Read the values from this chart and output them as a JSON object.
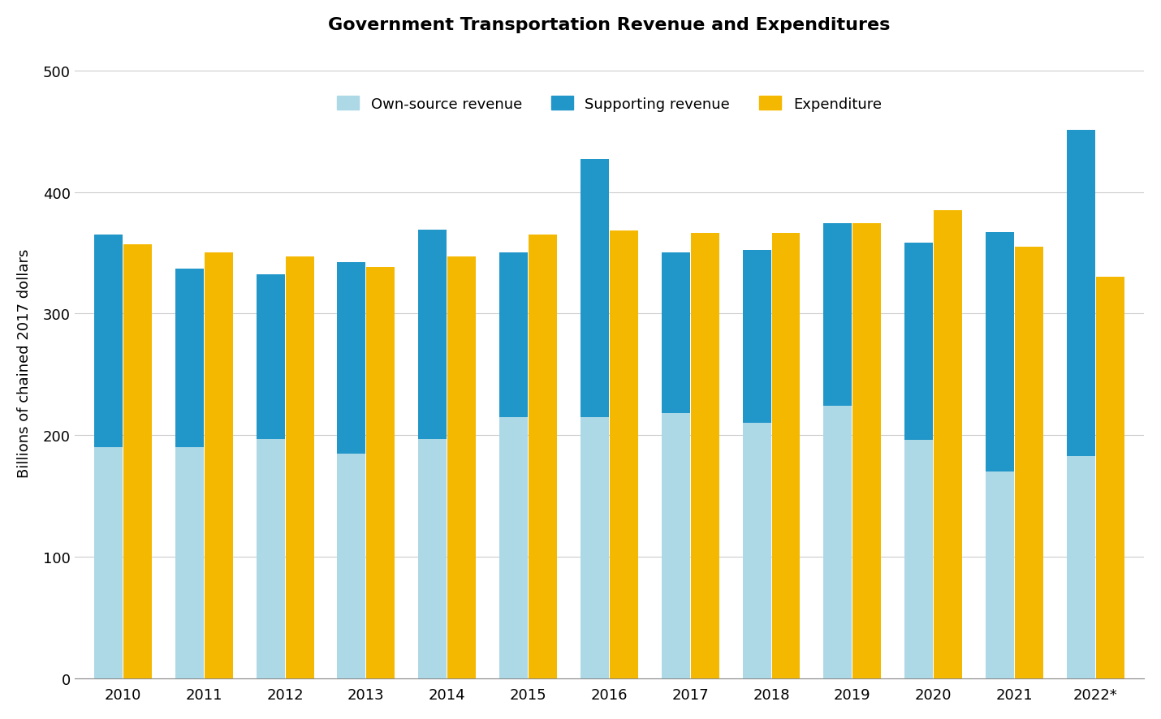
{
  "title": "Government Transportation Revenue and Expenditures",
  "ylabel": "Billions of chained 2017 dollars",
  "years": [
    "2010",
    "2011",
    "2012",
    "2013",
    "2014",
    "2015",
    "2016",
    "2017",
    "2018",
    "2019",
    "2020",
    "2021",
    "2022*"
  ],
  "own_source_revenue": [
    190,
    190,
    197,
    185,
    197,
    215,
    215,
    218,
    210,
    224,
    196,
    170,
    183
  ],
  "supporting_revenue": [
    175,
    147,
    135,
    157,
    172,
    135,
    212,
    132,
    142,
    150,
    162,
    197,
    268
  ],
  "expenditure": [
    357,
    350,
    347,
    338,
    347,
    365,
    368,
    366,
    366,
    374,
    385,
    355,
    330
  ],
  "color_own_source": "#add8e6",
  "color_supporting": "#2196c8",
  "color_expenditure": "#f5b800",
  "ylim": [
    0,
    520
  ],
  "yticks": [
    0,
    100,
    200,
    300,
    400,
    500
  ],
  "legend_labels": [
    "Own-source revenue",
    "Supporting revenue",
    "Expenditure"
  ],
  "background_color": "#ffffff",
  "grid_color": "#cccccc"
}
